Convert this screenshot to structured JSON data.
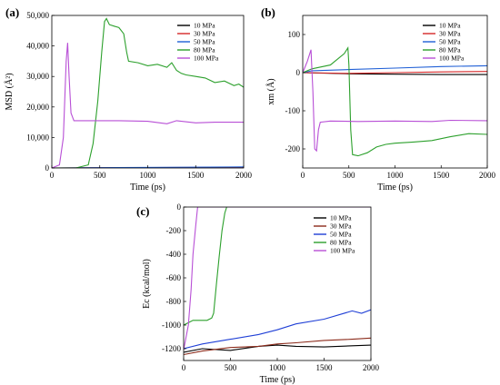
{
  "chart_data": [
    {
      "panel_label": "(a)",
      "type": "line",
      "xlabel": "Time (ps)",
      "ylabel": "MSD (Å²)",
      "xlim": [
        0,
        2000
      ],
      "ylim": [
        0,
        50000
      ],
      "xticks": [
        "0",
        "500",
        "1000",
        "1500",
        "2000"
      ],
      "yticks": [
        "0",
        "10,000",
        "20,000",
        "30,000",
        "40,000",
        "50,000"
      ],
      "legend_position": "top-right",
      "series": [
        {
          "name": "10 MPa",
          "color": "#000000",
          "points": [
            [
              0,
              0
            ],
            [
              2000,
              150
            ]
          ]
        },
        {
          "name": "30 MPa",
          "color": "#d62728",
          "points": [
            [
              0,
              0
            ],
            [
              2000,
              250
            ]
          ]
        },
        {
          "name": "50 MPa",
          "color": "#1f5fd6",
          "points": [
            [
              0,
              0
            ],
            [
              2000,
              350
            ]
          ]
        },
        {
          "name": "80 MPa",
          "color": "#2ca02c",
          "points": [
            [
              0,
              0
            ],
            [
              250,
              0
            ],
            [
              380,
              1000
            ],
            [
              430,
              8000
            ],
            [
              480,
              22000
            ],
            [
              520,
              38000
            ],
            [
              550,
              48000
            ],
            [
              570,
              49000
            ],
            [
              600,
              47000
            ],
            [
              650,
              46500
            ],
            [
              700,
              46000
            ],
            [
              750,
              44000
            ],
            [
              780,
              38000
            ],
            [
              800,
              35000
            ],
            [
              900,
              34500
            ],
            [
              1000,
              33500
            ],
            [
              1100,
              34000
            ],
            [
              1200,
              33000
            ],
            [
              1250,
              34500
            ],
            [
              1300,
              32000
            ],
            [
              1350,
              31000
            ],
            [
              1400,
              30500
            ],
            [
              1500,
              30000
            ],
            [
              1600,
              29500
            ],
            [
              1700,
              28000
            ],
            [
              1800,
              28500
            ],
            [
              1900,
              27000
            ],
            [
              1950,
              27500
            ],
            [
              2000,
              26500
            ]
          ]
        },
        {
          "name": "100 MPa",
          "color": "#b84fd6",
          "points": [
            [
              0,
              0
            ],
            [
              80,
              1000
            ],
            [
              120,
              10000
            ],
            [
              150,
              35000
            ],
            [
              165,
              41000
            ],
            [
              180,
              30000
            ],
            [
              200,
              18000
            ],
            [
              230,
              15500
            ],
            [
              400,
              15500
            ],
            [
              700,
              15500
            ],
            [
              1000,
              15300
            ],
            [
              1200,
              14500
            ],
            [
              1300,
              15500
            ],
            [
              1500,
              14800
            ],
            [
              1700,
              15000
            ],
            [
              2000,
              15000
            ]
          ]
        }
      ]
    },
    {
      "panel_label": "(b)",
      "type": "line",
      "xlabel": "Time (ps)",
      "ylabel": "xm (Å)",
      "xlim": [
        0,
        2000
      ],
      "ylim": [
        -250,
        150
      ],
      "xticks": [
        "0",
        "500",
        "1000",
        "1500",
        "2000"
      ],
      "yticks": [
        "-200",
        "-100",
        "0",
        "100"
      ],
      "legend_position": "top-right",
      "series": [
        {
          "name": "10 MPa",
          "color": "#000000",
          "points": [
            [
              0,
              0
            ],
            [
              500,
              -3
            ],
            [
              1000,
              -4
            ],
            [
              1500,
              -5
            ],
            [
              2000,
              -5
            ]
          ]
        },
        {
          "name": "30 MPa",
          "color": "#d62728",
          "points": [
            [
              0,
              0
            ],
            [
              500,
              -2
            ],
            [
              1000,
              0
            ],
            [
              1500,
              2
            ],
            [
              2000,
              3
            ]
          ]
        },
        {
          "name": "50 MPa",
          "color": "#1f5fd6",
          "points": [
            [
              0,
              0
            ],
            [
              100,
              5
            ],
            [
              500,
              8
            ],
            [
              1000,
              12
            ],
            [
              1500,
              16
            ],
            [
              2000,
              18
            ]
          ]
        },
        {
          "name": "80 MPa",
          "color": "#2ca02c",
          "points": [
            [
              0,
              0
            ],
            [
              100,
              10
            ],
            [
              300,
              20
            ],
            [
              450,
              50
            ],
            [
              490,
              65
            ],
            [
              500,
              20
            ],
            [
              520,
              -150
            ],
            [
              540,
              -215
            ],
            [
              600,
              -218
            ],
            [
              700,
              -210
            ],
            [
              800,
              -195
            ],
            [
              900,
              -188
            ],
            [
              1000,
              -185
            ],
            [
              1200,
              -182
            ],
            [
              1400,
              -178
            ],
            [
              1600,
              -168
            ],
            [
              1800,
              -160
            ],
            [
              2000,
              -162
            ]
          ]
        },
        {
          "name": "100 MPa",
          "color": "#b84fd6",
          "points": [
            [
              0,
              0
            ],
            [
              50,
              30
            ],
            [
              90,
              60
            ],
            [
              110,
              -50
            ],
            [
              130,
              -200
            ],
            [
              150,
              -205
            ],
            [
              170,
              -150
            ],
            [
              190,
              -130
            ],
            [
              300,
              -127
            ],
            [
              600,
              -128
            ],
            [
              1000,
              -127
            ],
            [
              1400,
              -128
            ],
            [
              1600,
              -125
            ],
            [
              2000,
              -126
            ]
          ]
        }
      ]
    },
    {
      "panel_label": "(c)",
      "type": "line",
      "xlabel": "Time (ps)",
      "ylabel": "Ec (kcal/mol)",
      "xlim": [
        0,
        2000
      ],
      "ylim": [
        -1300,
        0
      ],
      "xticks": [
        "0",
        "500",
        "1000",
        "1500",
        "2000"
      ],
      "yticks": [
        "-1200",
        "-1000",
        "-800",
        "-600",
        "-400",
        "-200",
        "0"
      ],
      "legend_position": "top-right",
      "series": [
        {
          "name": "10 MPa",
          "color": "#000000",
          "points": [
            [
              0,
              -1230
            ],
            [
              200,
              -1200
            ],
            [
              500,
              -1215
            ],
            [
              800,
              -1180
            ],
            [
              1000,
              -1170
            ],
            [
              1200,
              -1180
            ],
            [
              1500,
              -1185
            ],
            [
              1800,
              -1175
            ],
            [
              2000,
              -1170
            ]
          ]
        },
        {
          "name": "30 MPa",
          "color": "#8b2a1a",
          "points": [
            [
              0,
              -1250
            ],
            [
              200,
              -1220
            ],
            [
              500,
              -1190
            ],
            [
              800,
              -1180
            ],
            [
              1000,
              -1160
            ],
            [
              1200,
              -1150
            ],
            [
              1500,
              -1130
            ],
            [
              1800,
              -1120
            ],
            [
              2000,
              -1110
            ]
          ]
        },
        {
          "name": "50 MPa",
          "color": "#1f3fd6",
          "points": [
            [
              0,
              -1200
            ],
            [
              200,
              -1160
            ],
            [
              500,
              -1120
            ],
            [
              800,
              -1080
            ],
            [
              1000,
              -1040
            ],
            [
              1200,
              -990
            ],
            [
              1500,
              -950
            ],
            [
              1800,
              -880
            ],
            [
              1900,
              -900
            ],
            [
              2000,
              -870
            ]
          ]
        },
        {
          "name": "80 MPa",
          "color": "#2ca02c",
          "points": [
            [
              0,
              -1000
            ],
            [
              100,
              -960
            ],
            [
              250,
              -960
            ],
            [
              300,
              -940
            ],
            [
              320,
              -900
            ],
            [
              350,
              -650
            ],
            [
              380,
              -420
            ],
            [
              410,
              -200
            ],
            [
              440,
              -50
            ],
            [
              460,
              0
            ],
            [
              2000,
              0
            ]
          ]
        },
        {
          "name": "100 MPa",
          "color": "#b84fd6",
          "points": [
            [
              0,
              -1210
            ],
            [
              50,
              -1000
            ],
            [
              80,
              -700
            ],
            [
              100,
              -400
            ],
            [
              130,
              -150
            ],
            [
              150,
              0
            ],
            [
              2000,
              0
            ]
          ]
        }
      ]
    }
  ]
}
